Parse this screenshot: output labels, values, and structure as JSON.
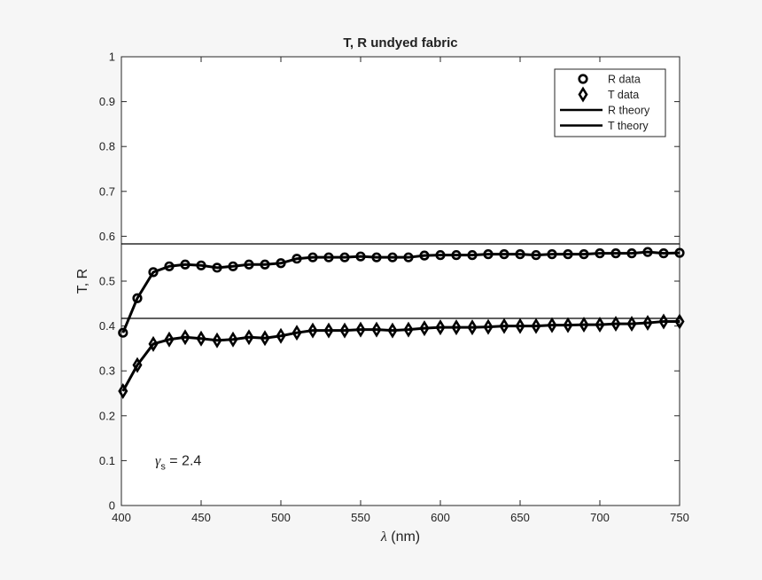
{
  "chart_data": {
    "type": "line",
    "title": "T, R  undyed fabric",
    "xlabel_symbol": "λ",
    "xlabel_unit": " (nm)",
    "ylabel": "T, R",
    "xlim": [
      400,
      750
    ],
    "ylim": [
      0,
      1
    ],
    "x_ticks": [
      400,
      450,
      500,
      550,
      600,
      650,
      700,
      750
    ],
    "x_tick_labels": [
      "400",
      "450",
      "500",
      "550",
      "600",
      "650",
      "700",
      "750"
    ],
    "y_ticks": [
      0,
      0.1,
      0.2,
      0.3,
      0.4,
      0.5,
      0.6,
      0.7,
      0.8,
      0.9,
      1
    ],
    "y_tick_labels": [
      "0",
      "0.1",
      "0.2",
      "0.3",
      "0.4",
      "0.5",
      "0.6",
      "0.7",
      "0.8",
      "0.9",
      "1"
    ],
    "grid": false,
    "legend_position": "top-right",
    "legend": [
      "R data",
      "T data",
      "R theory",
      "T theory"
    ],
    "x": [
      401,
      410,
      420,
      430,
      440,
      450,
      460,
      470,
      480,
      490,
      500,
      510,
      520,
      530,
      540,
      550,
      560,
      570,
      580,
      590,
      600,
      610,
      620,
      630,
      640,
      650,
      660,
      670,
      680,
      690,
      700,
      710,
      720,
      730,
      740,
      750
    ],
    "series": [
      {
        "name": "R data",
        "marker": "circle",
        "values": [
          0.385,
          0.462,
          0.52,
          0.533,
          0.537,
          0.535,
          0.53,
          0.533,
          0.537,
          0.537,
          0.54,
          0.55,
          0.553,
          0.553,
          0.553,
          0.555,
          0.553,
          0.553,
          0.553,
          0.557,
          0.558,
          0.558,
          0.558,
          0.56,
          0.56,
          0.56,
          0.558,
          0.56,
          0.56,
          0.56,
          0.562,
          0.562,
          0.562,
          0.565,
          0.562,
          0.563
        ]
      },
      {
        "name": "T data",
        "marker": "diamond",
        "values": [
          0.255,
          0.313,
          0.36,
          0.37,
          0.375,
          0.372,
          0.368,
          0.37,
          0.375,
          0.373,
          0.378,
          0.385,
          0.39,
          0.39,
          0.39,
          0.392,
          0.392,
          0.39,
          0.392,
          0.395,
          0.397,
          0.397,
          0.397,
          0.398,
          0.4,
          0.4,
          0.4,
          0.402,
          0.402,
          0.403,
          0.403,
          0.405,
          0.405,
          0.407,
          0.41,
          0.41
        ]
      },
      {
        "name": "R theory",
        "type": "line",
        "x": [
          400,
          750
        ],
        "values": [
          0.583,
          0.583
        ],
        "stroke_width": 1.2
      },
      {
        "name": "T theory",
        "type": "line",
        "x": [
          400,
          750
        ],
        "values": [
          0.417,
          0.417
        ],
        "stroke_width": 1.2
      }
    ],
    "annotation": {
      "symbol": "γ",
      "subscript": "s",
      "text": " = 2.4",
      "x": 425,
      "y": 0.1
    },
    "colors": {
      "line": "#000000",
      "background": "#f6f6f6",
      "plot_bg": "#ffffff"
    }
  }
}
